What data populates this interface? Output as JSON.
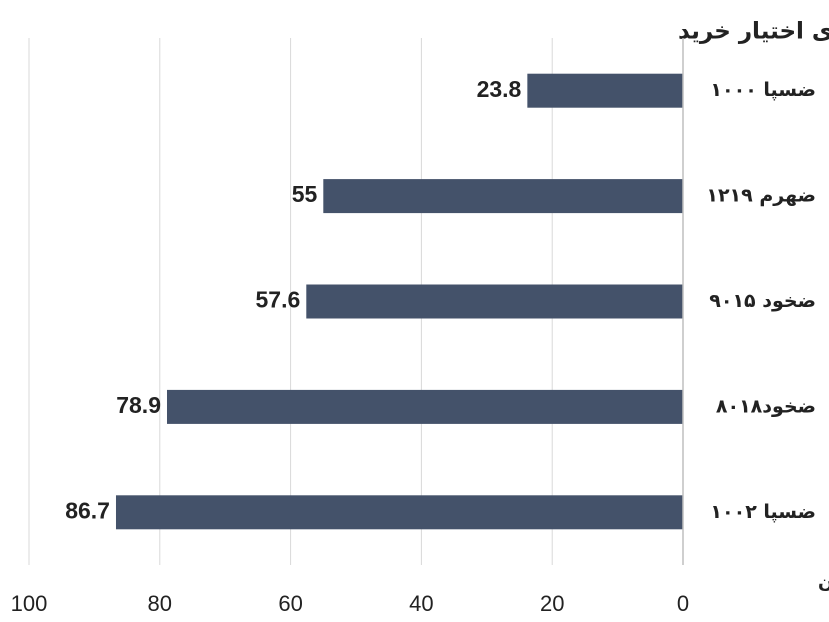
{
  "chart_data": {
    "type": "bar",
    "orientation": "horizontal",
    "x_reversed": true,
    "title": "بیشترین ارزش معاملات قراردادهای اختیار خرید",
    "x_label": "میلیارد تومان",
    "categories": [
      "ضسپا ۱۰۰۰",
      "ضهرم ۱۲۱۹",
      "ضخود ۹۰۱۵",
      "ضخود۸۰۱۸",
      "ضسپا ۱۰۰۲"
    ],
    "values": [
      23.8,
      55,
      57.6,
      78.9,
      86.7
    ],
    "color": "#44526a",
    "xlim": [
      0,
      100
    ],
    "xticks": [
      0,
      20,
      40,
      60,
      80,
      100
    ],
    "grid": true
  }
}
